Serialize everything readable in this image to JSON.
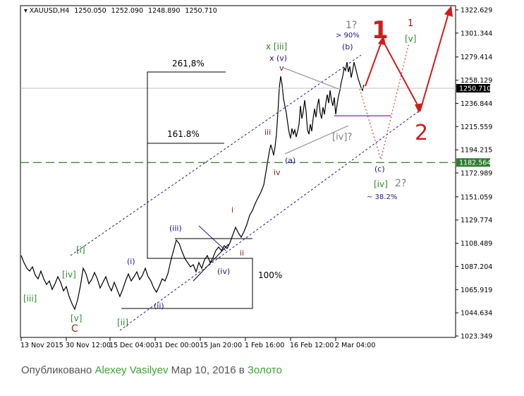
{
  "chart_data": {
    "type": "line",
    "symbol_header": {
      "symbol": "XAUUSD,H4",
      "open": "1250.050",
      "high": "1252.090",
      "low": "1248.890",
      "close": "1250.710"
    },
    "y_ticks": [
      "1322.629",
      "1301.344",
      "1279.414",
      "1258.129",
      "1236.844",
      "1215.559",
      "1194.215",
      "1172.989",
      "1151.059",
      "1129.774",
      "1108.489",
      "1087.204",
      "1065.919",
      "1044.634",
      "1023.349"
    ],
    "ylim": [
      1023.349,
      1322.629
    ],
    "x_ticks": [
      "13 Nov 2015",
      "30 Nov 12:00",
      "15 Dec 04:00",
      "31 Dec 00:00",
      "15 Jan 20:00",
      "1 Feb 16:00",
      "16 Feb 12:00",
      "2 Mar 04:00"
    ],
    "current_price": {
      "label": "1250.710",
      "value": 1250.71
    },
    "level_marker": {
      "label": "1182.564",
      "value": 1182.564
    },
    "series": [
      {
        "values_by_x_tick": [
          {
            "x": "13 Nov 2015",
            "y": 1083
          },
          {
            "x": "30 Nov 12:00",
            "y": 1060
          },
          {
            "x": "15 Dec 04:00",
            "y": 1060
          },
          {
            "x": "31 Dec 00:00",
            "y": 1062
          },
          {
            "x": "15 Jan 20:00",
            "y": 1090
          },
          {
            "x": "1 Feb 16:00",
            "y": 1125
          },
          {
            "x": "16 Feb 12:00",
            "y": 1205
          },
          {
            "x": "2 Mar 04:00",
            "y": 1262
          }
        ]
      }
    ],
    "fib_labels": {
      "ext_261": "261,8%",
      "ext_161": "161.8%",
      "base_100": "100%",
      "target_90": "> 90%",
      "retr_38": "~ 38.2%"
    },
    "wave_labels": {
      "roman_iii_sq": "[iii]",
      "roman_i_sq": "[i]",
      "roman_iv_sq": "[iv]",
      "roman_v_sq": "[v]",
      "roman_ii_sq": "[ii]",
      "letter_c": "C",
      "minute_i": "(i)",
      "minute_ii": "(ii)",
      "minute_iii": "(iii)",
      "minute_iv": "(iv)",
      "minuette_i": "i",
      "minuette_ii": "ii",
      "minuette_iii": "iii",
      "minuette_iv": "iv",
      "minuette_v": "v",
      "x_iii": "x [iii]",
      "x_v": "x (v)",
      "wave_a": "(a)",
      "wave_b": "(b)",
      "wave_c": "(c)",
      "iv_q": "[iv]?",
      "one_q": "1?",
      "two_q": "2?",
      "big_one": "1",
      "big_two": "2",
      "iv_target": "[iv]",
      "small_one": "1",
      "v_target": "[v]"
    }
  },
  "caption": {
    "prefix": "Опубликовано",
    "author": "Alexey Vasilyev",
    "date": "Мар 10, 2016 в",
    "category": "Золото"
  }
}
